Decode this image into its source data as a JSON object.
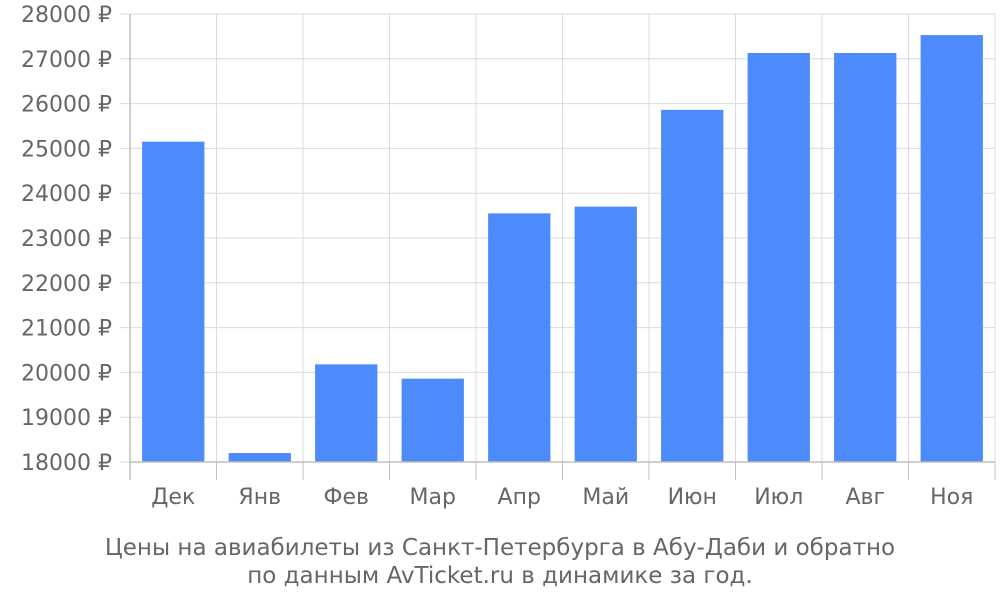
{
  "chart_data": {
    "type": "bar",
    "categories": [
      "Дек",
      "Янв",
      "Фев",
      "Мар",
      "Апр",
      "Май",
      "Июн",
      "Июл",
      "Авг",
      "Ноя"
    ],
    "values": [
      25150,
      18200,
      20180,
      19860,
      23550,
      23700,
      25860,
      27130,
      27130,
      27530
    ],
    "ylim": [
      18000,
      28000
    ],
    "y_ticks": [
      18000,
      19000,
      20000,
      21000,
      22000,
      23000,
      24000,
      25000,
      26000,
      27000,
      28000
    ],
    "y_tick_suffix": " ₽",
    "caption_line1": "Цены на авиабилеты из Санкт-Петербурга в Абу-Даби и обратно",
    "caption_line2": "по данным AvTicket.ru в динамике за год.",
    "grid": true,
    "bar_color": "#4d8afc",
    "grid_color": "#dcdcdc",
    "axis_color": "#bfbfbf"
  }
}
